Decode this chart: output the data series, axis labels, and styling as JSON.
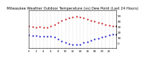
{
  "title": "Milwaukee Weather Outdoor Temperature (vs) Dew Point (Last 24 Hours)",
  "title_fontsize": 3.8,
  "temp_color": "#cc0000",
  "dew_color": "#0000cc",
  "current_color": "#000000",
  "background_color": "#ffffff",
  "hours": [
    0,
    1,
    2,
    3,
    4,
    5,
    6,
    7,
    8,
    9,
    10,
    11,
    12,
    13,
    14,
    15,
    16,
    17,
    18,
    19,
    20,
    21,
    22,
    23,
    24
  ],
  "temp_values": [
    30,
    29,
    28,
    29,
    28,
    28,
    30,
    33,
    37,
    40,
    43,
    45,
    47,
    48,
    47,
    45,
    43,
    41,
    39,
    37,
    35,
    33,
    32,
    31,
    30
  ],
  "dew_values": [
    14,
    13,
    13,
    12,
    12,
    11,
    11,
    10,
    6,
    3,
    0,
    -2,
    -3,
    -4,
    -3,
    0,
    2,
    4,
    6,
    8,
    10,
    12,
    14,
    15,
    16
  ],
  "ylim": [
    -10,
    60
  ],
  "yticks": [
    0,
    10,
    20,
    30,
    40,
    50
  ],
  "ylabel_fontsize": 3.2,
  "xlabel_fontsize": 2.8,
  "xlim": [
    0,
    24
  ],
  "grid_color": "#aaaaaa",
  "axis_linewidth": 0.4,
  "dot_size": 1.2,
  "marker": "."
}
